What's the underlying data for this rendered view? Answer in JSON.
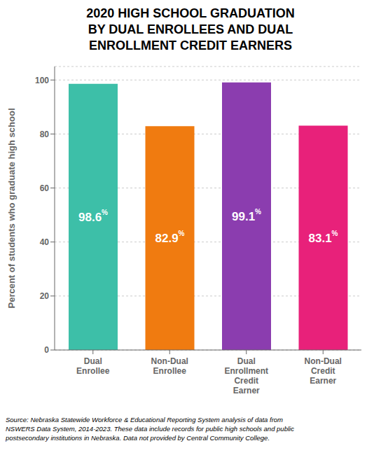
{
  "chart_data": {
    "type": "bar",
    "title": "2020 HIGH SCHOOL GRADUATION\nBY DUAL ENROLLEES AND DUAL\nENROLLMENT CREDIT EARNERS",
    "categories": [
      "Dual\nEnrollee",
      "Non-Dual\nEnrollee",
      "Dual\nEnrollment\nCredit\nEarner",
      "Non-Dual\nCredit\nEarner"
    ],
    "values": [
      98.6,
      82.9,
      99.1,
      83.1
    ],
    "value_labels": [
      "98.6%",
      "82.9%",
      "99.1%",
      "83.1%"
    ],
    "data_labels": true,
    "colors": [
      "#3DBFA8",
      "#F07B10",
      "#8B3DAF",
      "#E8217A"
    ],
    "ylabel": "Percent of students who graduate high school",
    "ylim": [
      0,
      105
    ],
    "yticks": [
      0,
      20,
      40,
      60,
      80,
      100
    ],
    "grid": true,
    "annotations": [
      "Source: Nebraska Statewide Workforce & Educational Reporting System analysis of data from\nNSWERS Data System, 2014-2023. These data include records for public high schools and public\npostsecondary institutions in Nebraska. Data not provided by Central Community College."
    ]
  }
}
